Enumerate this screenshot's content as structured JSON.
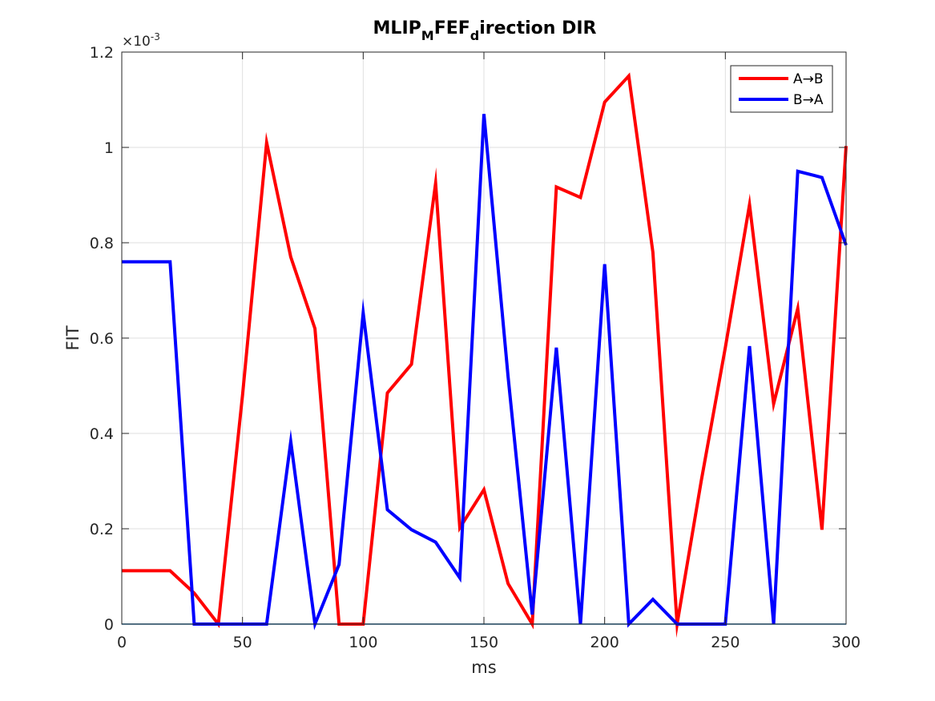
{
  "chart_data": {
    "type": "line",
    "title": {
      "parts": [
        {
          "text": "MLIP",
          "sub": false
        },
        {
          "text": "M",
          "sub": true
        },
        {
          "text": "FEF",
          "sub": false
        },
        {
          "text": "d",
          "sub": true
        },
        {
          "text": "irection DIR",
          "sub": false
        }
      ]
    },
    "xlabel": "ms",
    "ylabel": "FIT",
    "xlim": [
      0,
      300
    ],
    "ylim": [
      0,
      1.2
    ],
    "y_exponent_label": "×10",
    "y_exponent_power": "-3",
    "xticks": [
      0,
      50,
      100,
      150,
      200,
      250,
      300
    ],
    "yticks": [
      0,
      0.2,
      0.4,
      0.6,
      0.8,
      1,
      1.2
    ],
    "xtick_labels": [
      "0",
      "50",
      "100",
      "150",
      "200",
      "250",
      "300"
    ],
    "ytick_labels": [
      "0",
      "0.2",
      "0.4",
      "0.6",
      "0.8",
      "1",
      "1.2"
    ],
    "grid": true,
    "legend_position": "top-right",
    "x": [
      0,
      10,
      20,
      30,
      40,
      50,
      60,
      70,
      80,
      90,
      100,
      110,
      120,
      130,
      140,
      150,
      160,
      170,
      180,
      190,
      200,
      210,
      220,
      230,
      240,
      250,
      260,
      270,
      280,
      290,
      300
    ],
    "series": [
      {
        "name": "A→B",
        "color": "#ff0000",
        "values": [
          0.112,
          0.112,
          0.112,
          0.065,
          0.0,
          0.48,
          1.01,
          0.77,
          0.62,
          0.0,
          0.0,
          0.485,
          0.545,
          0.925,
          0.202,
          0.282,
          0.085,
          0.0,
          0.917,
          0.895,
          1.095,
          1.15,
          0.78,
          0.0,
          0.3,
          0.58,
          0.88,
          0.462,
          0.662,
          0.198,
          1.003
        ]
      },
      {
        "name": "B→A",
        "color": "#0000ff",
        "values": [
          0.76,
          0.76,
          0.76,
          0.0,
          0.0,
          0.0,
          0.0,
          0.383,
          0.0,
          0.125,
          0.653,
          0.24,
          0.198,
          0.172,
          0.097,
          1.07,
          0.52,
          0.02,
          0.58,
          0.0,
          0.755,
          0.0,
          0.052,
          0.0,
          0.0,
          0.0,
          0.583,
          0.0,
          0.95,
          0.937,
          0.795
        ]
      }
    ],
    "baseline_color": "#0072bd"
  }
}
